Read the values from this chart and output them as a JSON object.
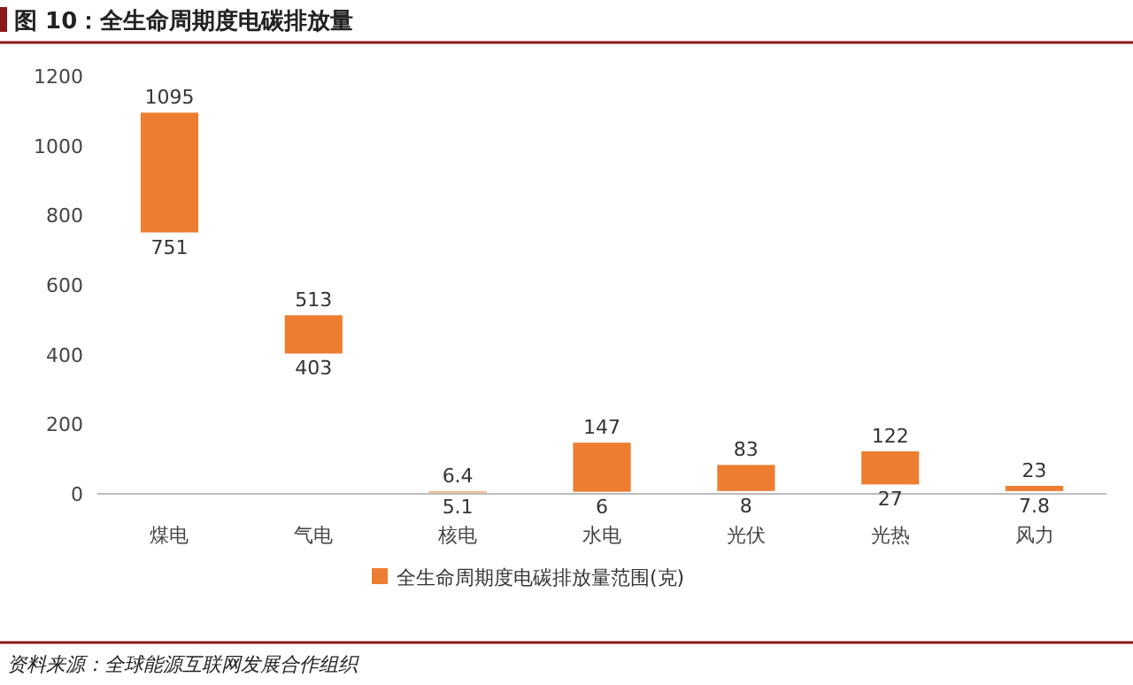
{
  "chart_data": {
    "type": "bar",
    "title": "图 10：全生命周期度电碳排放量",
    "categories": [
      "煤电",
      "气电",
      "核电",
      "水电",
      "光伏",
      "光热",
      "风力"
    ],
    "series": [
      {
        "name": "全生命周期度电碳排放量范围(克)",
        "color": "#ed7d31",
        "base": [
          751,
          403,
          5.1,
          6,
          8,
          27,
          7.8
        ],
        "values": [
          344,
          110,
          1.3,
          141,
          75,
          95,
          15.2
        ]
      }
    ],
    "ylim": [
      0,
      1200
    ],
    "yticks": [
      0,
      200,
      400,
      600,
      800,
      1000,
      1200
    ],
    "legend": "bottom",
    "annotations": [
      {
        "text": "1095",
        "x": "煤电",
        "y": 1095
      },
      {
        "text": "751",
        "x": "煤电",
        "y": 751
      },
      {
        "text": "513",
        "x": "气电",
        "y": 513
      },
      {
        "text": "403",
        "x": "气电",
        "y": 403
      },
      {
        "text": "6.4",
        "x": "核电",
        "y": 6.4
      },
      {
        "text": "5.1",
        "x": "核电",
        "y": 5.1
      },
      {
        "text": "147",
        "x": "水电",
        "y": 147
      },
      {
        "text": "6",
        "x": "水电",
        "y": 6
      },
      {
        "text": "83",
        "x": "光伏",
        "y": 83
      },
      {
        "text": "8",
        "x": "光伏",
        "y": 8
      },
      {
        "text": "122",
        "x": "光热",
        "y": 122
      },
      {
        "text": "27",
        "x": "光热",
        "y": 27
      },
      {
        "text": "23",
        "x": "风力",
        "y": 23
      },
      {
        "text": "7.8",
        "x": "风力",
        "y": 7.8
      },
      "资料来源：全球能源互联网发展合作组织"
    ]
  }
}
